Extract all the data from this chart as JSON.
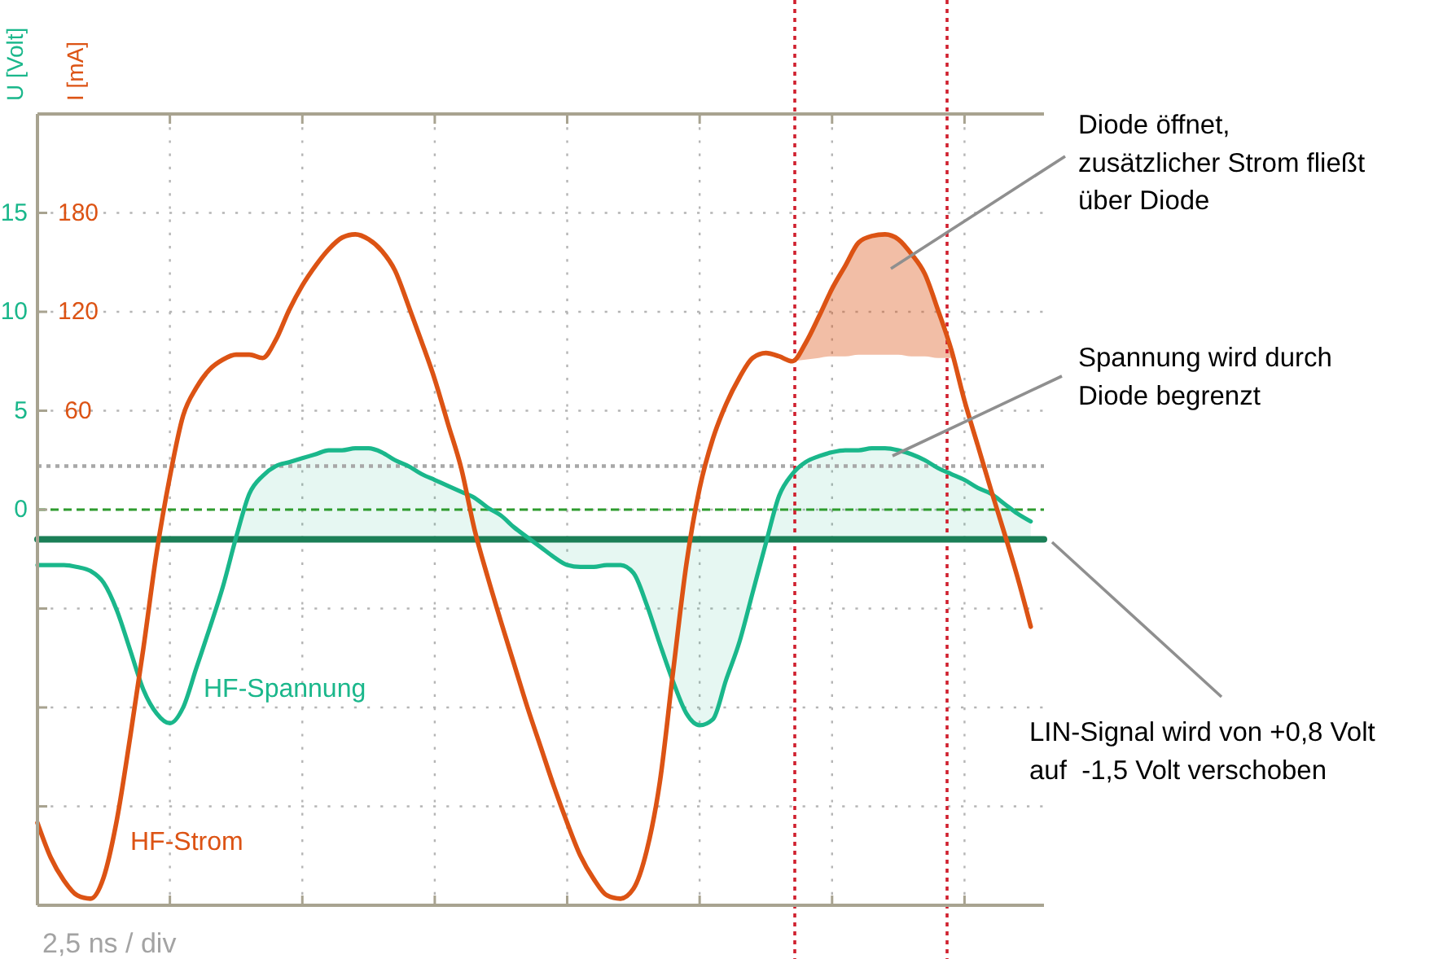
{
  "chart_data": {
    "type": "line",
    "ylabel": "U [Volt]",
    "y2label": "I [mA]",
    "categories": [
      null,
      null,
      null,
      null,
      null,
      null,
      null,
      null,
      null,
      null,
      null,
      null,
      null,
      null,
      null,
      null,
      null,
      null,
      null,
      null,
      null,
      null,
      null,
      null,
      null,
      null,
      null,
      null,
      null,
      null,
      null,
      null,
      null,
      null,
      null,
      null,
      null,
      null,
      null,
      null,
      null,
      null,
      null,
      null,
      null,
      null,
      null,
      null,
      null,
      null,
      null,
      null,
      null,
      null,
      null,
      null,
      null,
      null,
      null,
      null,
      null,
      null,
      null,
      null,
      null,
      null,
      null,
      null,
      null,
      null,
      null,
      null,
      null,
      null,
      null,
      null,
      null
    ],
    "ylim": [
      -20,
      20
    ],
    "yticks": [
      {
        "value": -20,
        "label": null
      },
      {
        "value": -15,
        "label": null
      },
      {
        "value": -10,
        "label": null
      },
      {
        "value": -5,
        "label": null
      },
      0,
      5,
      10,
      15,
      {
        "value": 20,
        "label": null
      }
    ],
    "y2lim": [
      -240,
      240
    ],
    "y2ticks": [
      60,
      120,
      180
    ],
    "tick_labels": "y",
    "grid": true,
    "series": [
      {
        "color": "#1b7f57",
        "values": [
          -1.5,
          -1.5,
          -1.5,
          -1.5,
          -1.5,
          -1.5,
          -1.5,
          -1.5,
          -1.5,
          -1.5,
          -1.5,
          -1.5,
          -1.5,
          -1.5,
          -1.5,
          -1.5,
          -1.5,
          -1.5,
          -1.5,
          -1.5,
          -1.5,
          -1.5,
          -1.5,
          -1.5,
          -1.5,
          -1.5,
          -1.5,
          -1.5,
          -1.5,
          -1.5,
          -1.5,
          -1.5,
          -1.5,
          -1.5,
          -1.5,
          -1.5,
          -1.5,
          -1.5,
          -1.5,
          -1.5,
          -1.5,
          -1.5,
          -1.5,
          -1.5,
          -1.5,
          -1.5,
          -1.5,
          -1.5,
          -1.5,
          -1.5,
          -1.5,
          -1.5,
          -1.5,
          -1.5,
          -1.5,
          -1.5,
          -1.5,
          -1.5,
          -1.5,
          -1.5,
          -1.5,
          -1.5,
          -1.5,
          -1.5,
          -1.5,
          -1.5,
          -1.5,
          -1.5,
          -1.5,
          -1.5,
          -1.5,
          -1.5,
          -1.5,
          -1.5,
          -1.5,
          -1.5,
          -1.5
        ]
      },
      {
        "name": "HF-Spannung",
        "color": "#1ab78b",
        "values": [
          -2.8,
          -2.8,
          -2.8,
          -2.9,
          -3.1,
          -3.7,
          -5.1,
          -7.1,
          -9.1,
          -10.3,
          -10.8,
          -10.0,
          -8.0,
          -6.0,
          -3.9,
          -1.4,
          0.8,
          1.7,
          2.2,
          2.4,
          2.6,
          2.8,
          3.0,
          3.0,
          3.1,
          3.1,
          2.9,
          2.5,
          2.2,
          1.8,
          1.5,
          1.2,
          0.9,
          0.6,
          0.1,
          -0.3,
          -0.9,
          -1.4,
          -1.9,
          -2.4,
          -2.8,
          -2.9,
          -2.9,
          -2.8,
          -2.8,
          -3.2,
          -4.8,
          -6.8,
          -8.7,
          -10.3,
          -10.9,
          -10.6,
          -8.6,
          -6.7,
          -4.2,
          -1.7,
          0.7,
          1.8,
          2.4,
          2.7,
          2.9,
          3.0,
          3.0,
          3.1,
          3.1,
          3.0,
          2.8,
          2.5,
          2.1,
          1.8,
          1.5,
          1.1,
          0.8,
          0.3,
          -0.2,
          -0.6,
          null
        ],
        "lower": [
          null,
          null,
          null,
          null,
          null,
          null,
          null,
          null,
          null,
          null,
          null,
          null,
          null,
          null,
          null,
          -1.5,
          -1.5,
          -1.5,
          -1.5,
          -1.5,
          -1.5,
          -1.5,
          -1.5,
          -1.5,
          -1.5,
          -1.5,
          -1.5,
          -1.5,
          -1.5,
          -1.5,
          -1.5,
          -1.5,
          -1.5,
          -1.5,
          -1.5,
          -1.5,
          -1.5,
          -1.5,
          -1.9,
          -2.4,
          -2.8,
          -2.9,
          -2.9,
          -2.8,
          -2.8,
          -3.2,
          -4.8,
          -6.8,
          -8.7,
          -10.3,
          -10.9,
          -10.6,
          -8.6,
          -6.7,
          -4.2,
          -1.7,
          -1.5,
          -1.5,
          -1.5,
          -1.5,
          -1.5,
          -1.5,
          -1.5,
          -1.5,
          -1.5,
          -1.5,
          -1.5,
          -1.5,
          -1.5,
          -1.5,
          -1.5,
          -1.5,
          -1.5,
          -1.5,
          -1.5,
          -1.5,
          null
        ],
        "upper": [
          null,
          null,
          null,
          null,
          null,
          null,
          null,
          null,
          null,
          null,
          null,
          null,
          null,
          null,
          null,
          -1.4,
          0.8,
          1.7,
          2.2,
          2.4,
          2.6,
          2.8,
          3.0,
          3.0,
          3.1,
          3.1,
          2.9,
          2.5,
          2.2,
          1.8,
          1.5,
          1.2,
          0.9,
          0.6,
          0.1,
          -0.3,
          -0.9,
          -1.4,
          -1.5,
          -1.5,
          -1.5,
          -1.5,
          -1.5,
          -1.5,
          -1.5,
          -1.5,
          -1.5,
          -1.5,
          -1.5,
          -1.5,
          -1.5,
          -1.5,
          -1.5,
          -1.5,
          -1.5,
          -1.5,
          0.7,
          1.8,
          2.4,
          2.7,
          2.9,
          3.0,
          3.0,
          3.1,
          3.1,
          3.0,
          2.8,
          2.5,
          2.1,
          1.8,
          1.5,
          1.1,
          0.8,
          0.3,
          -0.2,
          -0.6,
          null
        ]
      },
      {
        "name": "HF-Strom",
        "color": "#dc5314",
        "axis": "y2",
        "values": [
          -190,
          -211,
          -225,
          -234,
          -236,
          -223,
          -188,
          -138,
          -84,
          -26,
          20,
          57,
          74,
          85,
          91,
          94,
          94,
          92,
          103,
          121,
          136,
          148,
          158,
          165,
          167,
          164,
          157,
          145,
          124,
          102,
          79,
          52,
          25,
          -12,
          -41,
          -68,
          -94,
          -120,
          -144,
          -168,
          -190,
          -210,
          -224,
          -234,
          -236,
          -230,
          -207,
          -165,
          -98,
          -33,
          13,
          43,
          64,
          80,
          92,
          95,
          93,
          90,
          101,
          117,
          134,
          148,
          162,
          166,
          167,
          164,
          155,
          143,
          121,
          97,
          66,
          39,
          12,
          -14,
          -41,
          -71,
          null
        ],
        "lower": [
          null,
          null,
          null,
          null,
          null,
          null,
          null,
          null,
          null,
          null,
          null,
          null,
          null,
          null,
          null,
          null,
          null,
          null,
          null,
          null,
          null,
          null,
          null,
          null,
          null,
          null,
          null,
          null,
          null,
          null,
          null,
          null,
          null,
          null,
          null,
          null,
          null,
          null,
          null,
          null,
          null,
          null,
          null,
          null,
          null,
          null,
          null,
          null,
          null,
          null,
          null,
          null,
          null,
          null,
          null,
          null,
          null,
          90,
          91,
          92,
          93,
          93,
          94,
          94,
          94,
          94,
          93,
          93,
          92,
          92,
          null,
          null,
          null,
          null,
          null,
          null,
          null
        ],
        "upper": [
          null,
          null,
          null,
          null,
          null,
          null,
          null,
          null,
          null,
          null,
          null,
          null,
          null,
          null,
          null,
          null,
          null,
          null,
          null,
          null,
          null,
          null,
          null,
          null,
          null,
          null,
          null,
          null,
          null,
          null,
          null,
          null,
          null,
          null,
          null,
          null,
          null,
          null,
          null,
          null,
          null,
          null,
          null,
          null,
          null,
          null,
          null,
          null,
          null,
          null,
          null,
          null,
          null,
          null,
          null,
          null,
          null,
          90,
          101,
          117,
          134,
          148,
          162,
          166,
          167,
          164,
          155,
          143,
          121,
          97,
          null,
          null,
          null,
          null,
          null,
          null,
          null
        ]
      }
    ],
    "ref_lines": [
      {
        "axis": "y",
        "value": 0,
        "color": "#2e9c2e",
        "line_style": "dashed"
      },
      {
        "axis": "y",
        "value": 2.2,
        "color": "#a8a8a8",
        "line_style": "dotted"
      }
    ],
    "annotations": [
      "Diode öffnet,\nzusätzlicher Strom fließt\nüber Diode",
      "Spannung wird durch\nDiode begrenzt",
      "LIN-Signal wird von +0,8 Volt\nauf  -1,5 Volt verschoben",
      "2,5 ns / div"
    ]
  }
}
